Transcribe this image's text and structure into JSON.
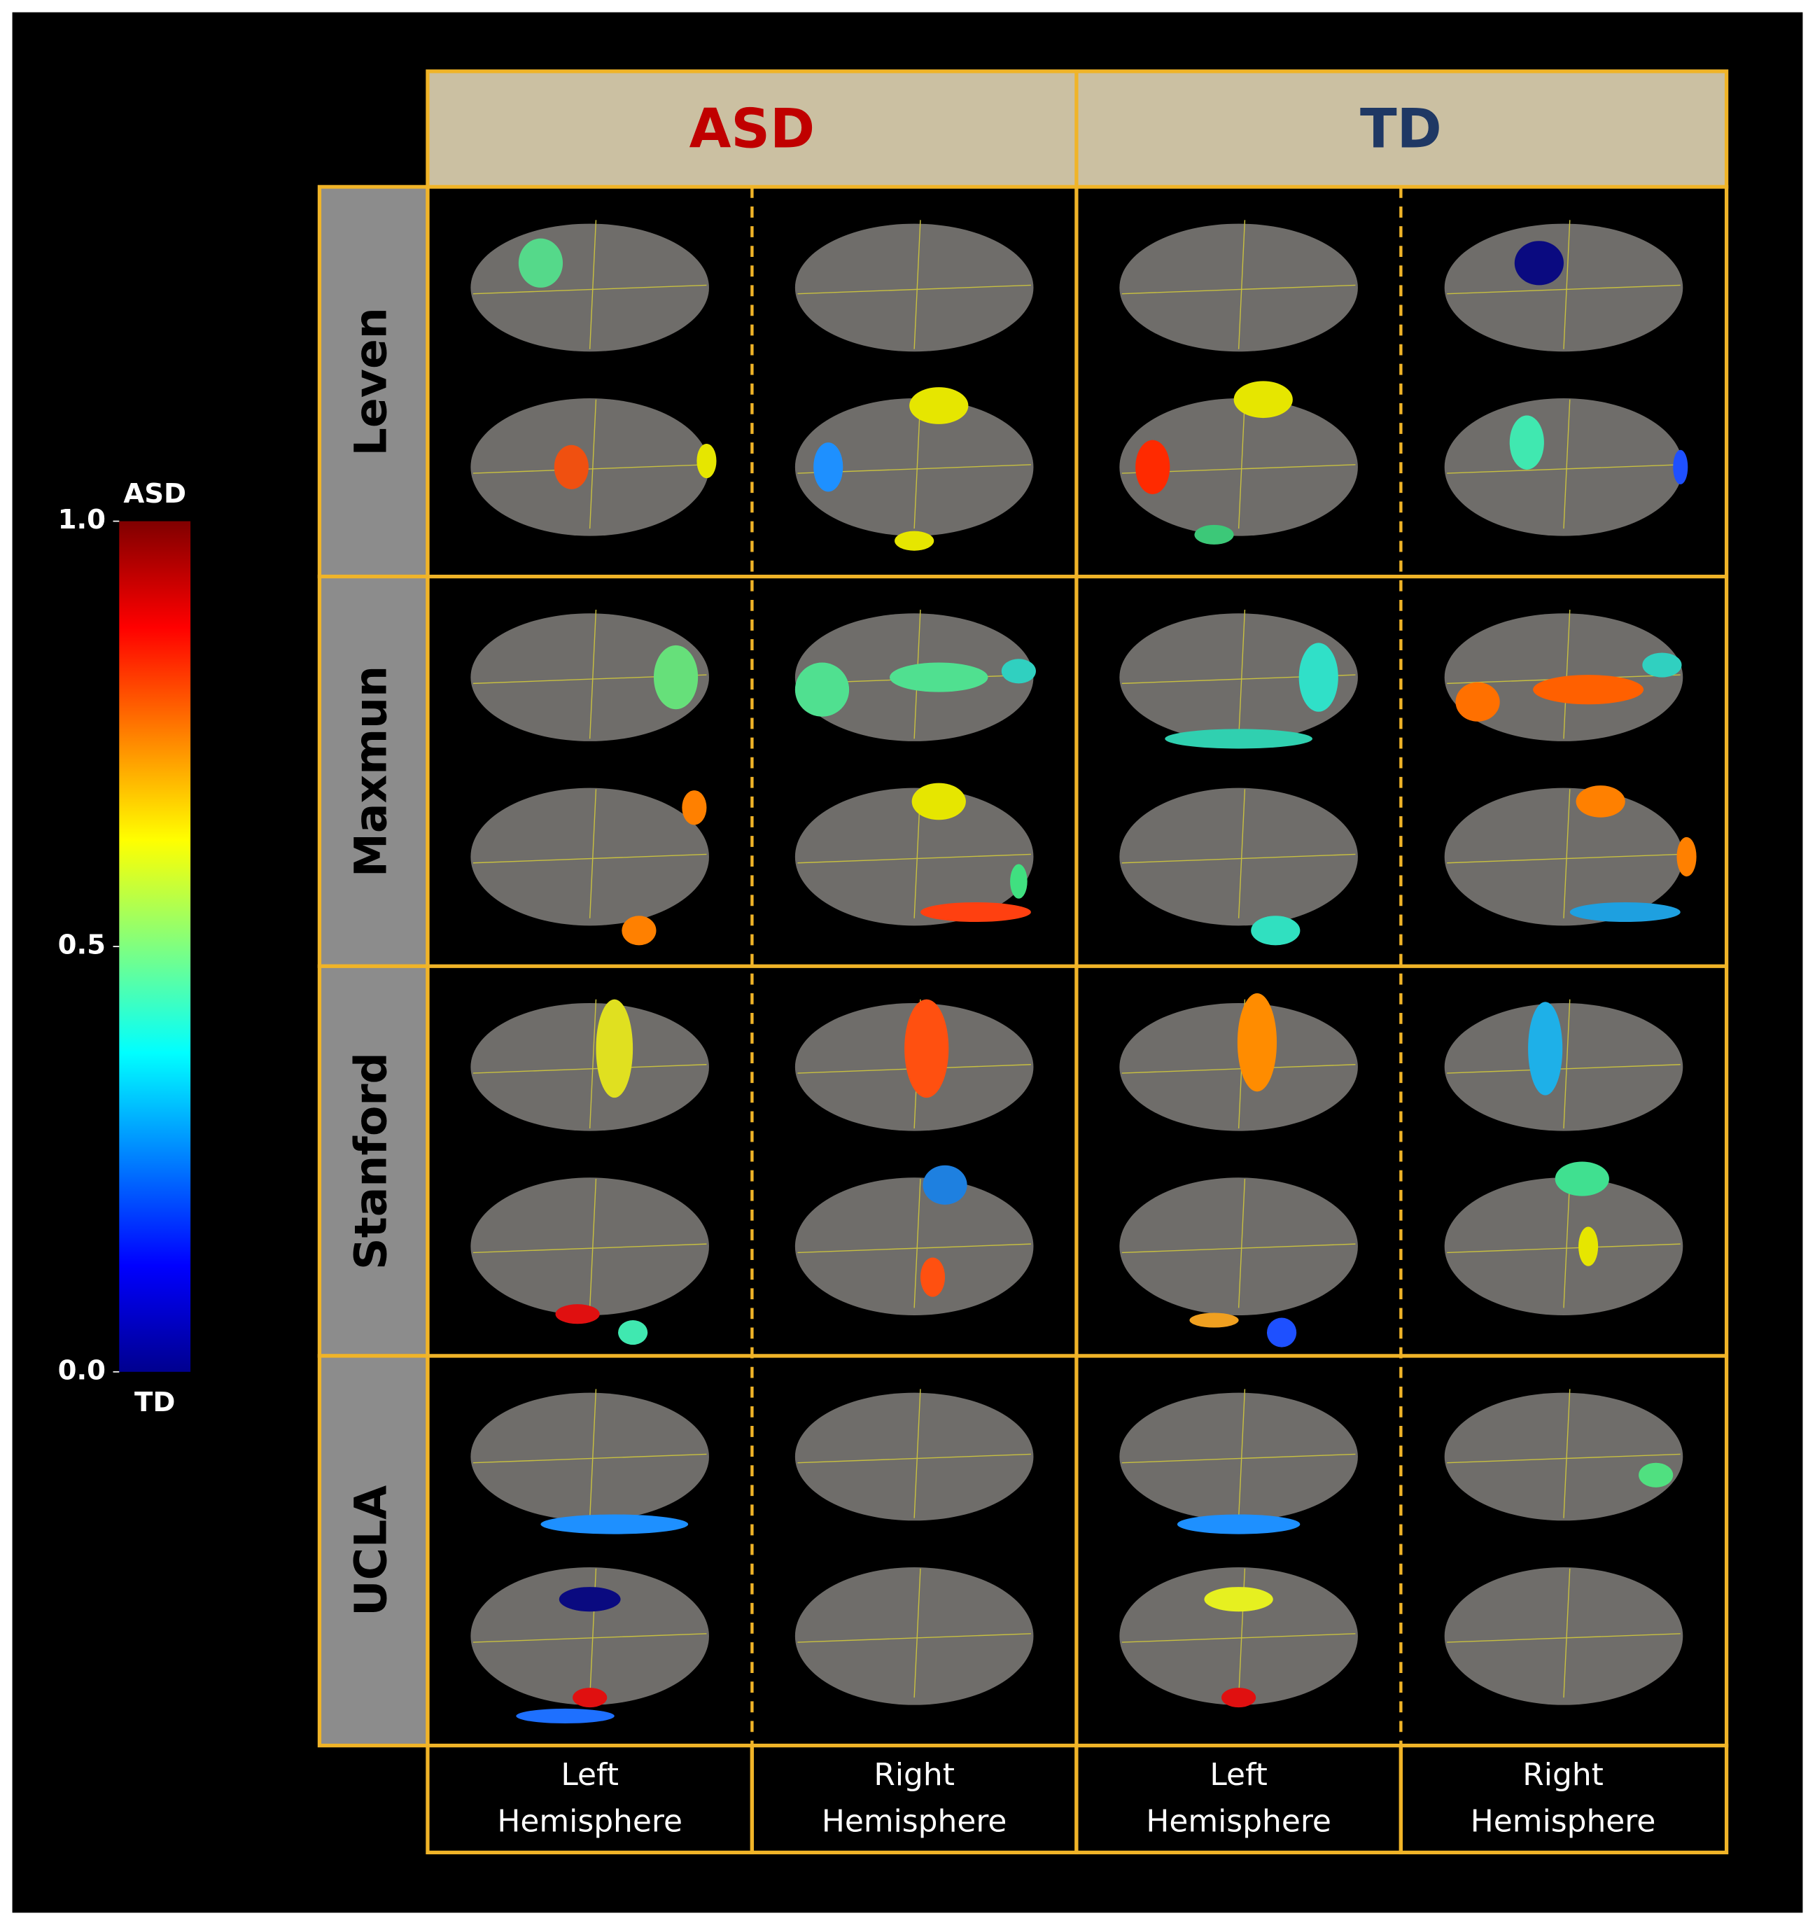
{
  "colorbar": {
    "lim": [
      0,
      1
    ],
    "ticks": [
      {
        "value": 0,
        "label": "0.0"
      },
      0.5,
      {
        "value": 1,
        "label": "1.0"
      }
    ],
    "top_label": "ASD",
    "bottom_label": "TD"
  },
  "groups": [
    {
      "name": "ASD",
      "color": "#c00000"
    },
    {
      "name": "TD",
      "color": "#1f3864"
    }
  ],
  "rows": [
    "Leven",
    "Maxmun",
    "Stanford",
    "UCLA"
  ],
  "columns": [
    "Left Hemisphere",
    "Right Hemisphere",
    "Left Hemisphere",
    "Right Hemisphere"
  ]
}
